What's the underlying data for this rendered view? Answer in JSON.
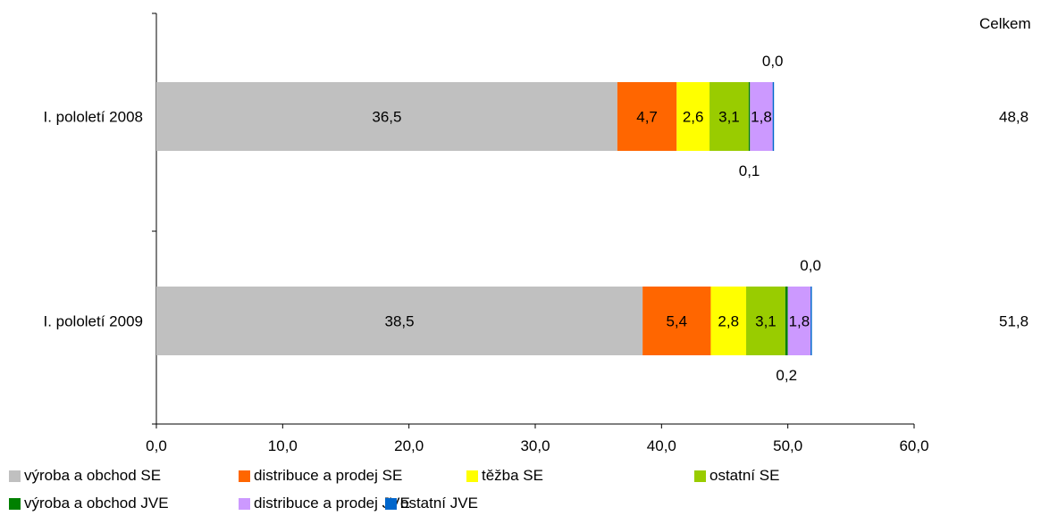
{
  "chart_data": {
    "type": "bar",
    "orientation": "horizontal",
    "stacked": true,
    "categories": [
      "I. pololetí 2008",
      "I. pololetí 2009"
    ],
    "series": [
      {
        "name": "výroba a obchod SE",
        "color": "#c0c0c0",
        "values": [
          36.5,
          38.5
        ],
        "labels": [
          "36,5",
          "38,5"
        ]
      },
      {
        "name": "distribuce a prodej SE",
        "color": "#ff6600",
        "values": [
          4.7,
          5.4
        ],
        "labels": [
          "4,7",
          "5,4"
        ]
      },
      {
        "name": "těžba SE",
        "color": "#ffff00",
        "values": [
          2.6,
          2.8
        ],
        "labels": [
          "2,6",
          "2,8"
        ]
      },
      {
        "name": "ostatní SE",
        "color": "#99cc00",
        "values": [
          3.1,
          3.1
        ],
        "labels": [
          "3,1",
          "3,1"
        ]
      },
      {
        "name": "výroba a obchod JVE",
        "color": "#008000",
        "values": [
          0.1,
          0.2
        ],
        "labels": [
          "0,1",
          "0,2"
        ]
      },
      {
        "name": "distribuce a prodej JVE",
        "color": "#cc99ff",
        "values": [
          1.8,
          1.8
        ],
        "labels": [
          "1,8",
          "1,8"
        ]
      },
      {
        "name": "ostatní JVE",
        "color": "#0066cc",
        "values": [
          0.0,
          0.0
        ],
        "labels": [
          "0,0",
          "0,0"
        ]
      }
    ],
    "totals_header": "Celkem",
    "totals": [
      "48,8",
      "51,8"
    ],
    "xlim": [
      0,
      60
    ],
    "xticks": [
      "0,0",
      "10,0",
      "20,0",
      "30,0",
      "40,0",
      "50,0",
      "60,0"
    ],
    "grid": false,
    "legend_position": "bottom"
  }
}
